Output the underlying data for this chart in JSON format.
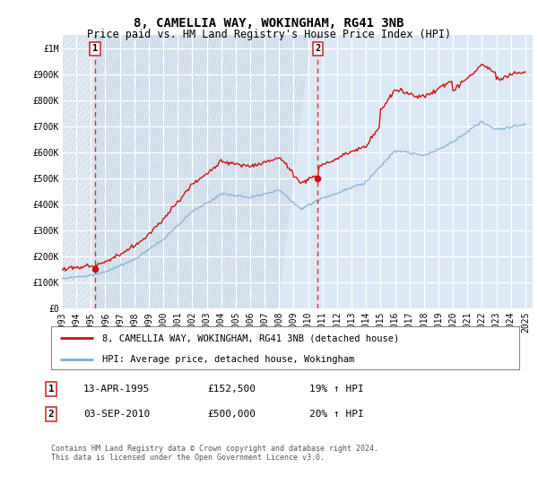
{
  "title": "8, CAMELLIA WAY, WOKINGHAM, RG41 3NB",
  "subtitle": "Price paid vs. HM Land Registry's House Price Index (HPI)",
  "ylabel_ticks": [
    "£0",
    "£100K",
    "£200K",
    "£300K",
    "£400K",
    "£500K",
    "£600K",
    "£700K",
    "£800K",
    "£900K",
    "£1M"
  ],
  "ytick_values": [
    0,
    100000,
    200000,
    300000,
    400000,
    500000,
    600000,
    700000,
    800000,
    900000,
    1000000
  ],
  "ylim": [
    0,
    1050000
  ],
  "xlim_left": 1993.0,
  "xlim_right": 2025.5,
  "sale1_year": 1995.29,
  "sale1_price": 152500,
  "sale1_label": "1",
  "sale2_year": 2010.67,
  "sale2_price": 500000,
  "sale2_label": "2",
  "hpi_color": "#7bafd4",
  "price_color": "#cc1111",
  "vline_color": "#cc3333",
  "dot_color": "#cc1111",
  "grid_color": "#ffffff",
  "bg_color": "#dce8f5",
  "hatch_color": "#c0cdd8",
  "legend_line1": "8, CAMELLIA WAY, WOKINGHAM, RG41 3NB (detached house)",
  "legend_line2": "HPI: Average price, detached house, Wokingham",
  "table_row1": [
    "1",
    "13-APR-1995",
    "£152,500",
    "19% ↑ HPI"
  ],
  "table_row2": [
    "2",
    "03-SEP-2010",
    "£500,000",
    "20% ↑ HPI"
  ],
  "footer": "Contains HM Land Registry data © Crown copyright and database right 2024.\nThis data is licensed under the Open Government Licence v3.0.",
  "title_fontsize": 10,
  "subtitle_fontsize": 8.5,
  "tick_fontsize": 7,
  "legend_fontsize": 7.5,
  "table_fontsize": 8,
  "footer_fontsize": 6,
  "font_family": "monospace"
}
